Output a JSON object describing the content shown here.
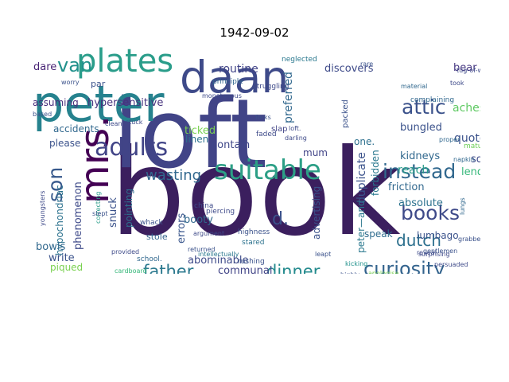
{
  "title": "1942-09-02",
  "chart_data": {
    "type": "wordcloud",
    "title": "1942-09-02",
    "words": [
      {
        "text": "book",
        "color": "#3b1f5e"
      },
      {
        "text": "loft",
        "color": "#414487"
      },
      {
        "text": "peter",
        "color": "#26828e"
      },
      {
        "text": "daan",
        "color": "#3e4a89"
      },
      {
        "text": "mrs.",
        "color": "#440154"
      },
      {
        "text": "plates",
        "color": "#2a9d8a"
      },
      {
        "text": "suitable",
        "color": "#2c9f86"
      },
      {
        "text": "adults",
        "color": "#414487"
      },
      {
        "text": "instead",
        "color": "#31688e"
      },
      {
        "text": "books",
        "color": "#3e4a89"
      },
      {
        "text": "son",
        "color": "#38598c"
      },
      {
        "text": "van",
        "color": "#21918c"
      },
      {
        "text": "attic",
        "color": "#3b528b"
      },
      {
        "text": "curiosity",
        "color": "#33638d"
      },
      {
        "text": "father",
        "color": "#2a788e"
      },
      {
        "text": "dinner",
        "color": "#238a8d"
      },
      {
        "text": "dutch",
        "color": "#2d708e"
      },
      {
        "text": "d.",
        "color": "#3b528b"
      },
      {
        "text": "wasting",
        "color": "#31688e"
      },
      {
        "text": "routine",
        "color": "#404387"
      },
      {
        "text": "discovers",
        "color": "#3e4a89"
      },
      {
        "text": "bear",
        "color": "#453781"
      },
      {
        "text": "dare",
        "color": "#482475"
      },
      {
        "text": "quote",
        "color": "#3b528b"
      },
      {
        "text": "aches",
        "color": "#5ec962"
      },
      {
        "text": "kidneys",
        "color": "#31688e"
      },
      {
        "text": "reach",
        "color": "#2a9d8a"
      },
      {
        "text": "soup",
        "color": "#3e4a89"
      },
      {
        "text": "lends",
        "color": "#35b779"
      },
      {
        "text": "bungled",
        "color": "#3b528b"
      },
      {
        "text": "one.",
        "color": "#2d708e"
      },
      {
        "text": "friction",
        "color": "#31688e"
      },
      {
        "text": "absolute",
        "color": "#2c728e"
      },
      {
        "text": "lumbago",
        "color": "#3b528b"
      },
      {
        "text": "speak",
        "color": "#2f6c8e"
      },
      {
        "text": "boxes",
        "color": "#3b528b"
      },
      {
        "text": "hypersensitive",
        "color": "#46327e"
      },
      {
        "text": "assuming",
        "color": "#472d7b"
      },
      {
        "text": "accidents",
        "color": "#31688e"
      },
      {
        "text": "please",
        "color": "#3b528b"
      },
      {
        "text": "ticked",
        "color": "#7ad151"
      },
      {
        "text": "linen",
        "color": "#2c728e"
      },
      {
        "text": "contain",
        "color": "#3f4788"
      },
      {
        "text": "preferred",
        "color": "#31688e"
      },
      {
        "text": "mum",
        "color": "#414487"
      },
      {
        "text": "duplicate",
        "color": "#3b528b"
      },
      {
        "text": "forbidden",
        "color": "#2a788e"
      },
      {
        "text": "peter—and",
        "color": "#2a788e"
      },
      {
        "text": "advertising",
        "color": "#3b528b"
      },
      {
        "text": "errors",
        "color": "#39568c"
      },
      {
        "text": "booty",
        "color": "#31688e"
      },
      {
        "text": "stole",
        "color": "#33638d"
      },
      {
        "text": "abominable",
        "color": "#3e4a89"
      },
      {
        "text": "communal",
        "color": "#414487"
      },
      {
        "text": "snuck",
        "color": "#3b528b"
      },
      {
        "text": "pointing",
        "color": "#2d708e"
      },
      {
        "text": "phenomenon",
        "color": "#3e4a89"
      },
      {
        "text": "hypochondriac",
        "color": "#2c728e"
      },
      {
        "text": "bowls",
        "color": "#31688e"
      },
      {
        "text": "write",
        "color": "#3b528b"
      },
      {
        "text": "piqued",
        "color": "#7ad151"
      },
      {
        "text": "school.",
        "color": "#31688e"
      },
      {
        "text": "par",
        "color": "#3b528b"
      },
      {
        "text": "slap",
        "color": "#414487"
      },
      {
        "text": "packed",
        "color": "#3b528b"
      },
      {
        "text": "struggling",
        "color": "#3e4a89"
      },
      {
        "text": "principle",
        "color": "#31688e"
      },
      {
        "text": "neglected",
        "color": "#2a788e"
      },
      {
        "text": "complaining",
        "color": "#31688e"
      },
      {
        "text": "china",
        "color": "#3e4a89"
      },
      {
        "text": "rushing",
        "color": "#3b528b"
      },
      {
        "text": "piercing",
        "color": "#3e4a89"
      },
      {
        "text": "highness",
        "color": "#3b528b"
      },
      {
        "text": "stared",
        "color": "#2c728e"
      },
      {
        "text": "whack",
        "color": "#3b528b"
      },
      {
        "text": "faded",
        "color": "#3e4a89"
      },
      {
        "text": "forks",
        "color": "#3b528b"
      },
      {
        "text": "loft.",
        "color": "#3e4a89"
      },
      {
        "text": "darling",
        "color": "#3e4a89"
      },
      {
        "text": "kicking",
        "color": "#21918c"
      },
      {
        "text": "leapt",
        "color": "#3b528b"
      },
      {
        "text": "cardboard",
        "color": "#35b779"
      },
      {
        "text": "provided",
        "color": "#3e4a89"
      },
      {
        "text": "worry",
        "color": "#3b528b"
      },
      {
        "text": "monotonous",
        "color": "#3e4a89"
      },
      {
        "text": "mature",
        "color": "#6ece58"
      },
      {
        "text": "napkin",
        "color": "#31688e"
      },
      {
        "text": "tug-of-war",
        "color": "#3e4a89"
      },
      {
        "text": "rare",
        "color": "#3b528b"
      },
      {
        "text": "took",
        "color": "#3e4a89"
      },
      {
        "text": "material",
        "color": "#31688e"
      },
      {
        "text": "based",
        "color": "#3b528b"
      },
      {
        "text": "clean",
        "color": "#3e4a89"
      },
      {
        "text": "correcting",
        "color": "#2a9d8a"
      },
      {
        "text": "slept",
        "color": "#3b528b"
      },
      {
        "text": "youngsters",
        "color": "#3e4a89"
      },
      {
        "text": "interruptions",
        "color": "#31688e"
      },
      {
        "text": "reveal",
        "color": "#3e4a89"
      },
      {
        "text": "apologise",
        "color": "#7ad151"
      },
      {
        "text": "gentlemen",
        "color": "#3b528b"
      },
      {
        "text": "persuaded",
        "color": "#3e4a89"
      },
      {
        "text": "grabbed",
        "color": "#3b528b"
      },
      {
        "text": "lungs",
        "color": "#31688e"
      },
      {
        "text": "intellectually",
        "color": "#2a788e"
      },
      {
        "text": "argument",
        "color": "#3e4a89"
      },
      {
        "text": "returned",
        "color": "#3b528b"
      },
      {
        "text": "surprising",
        "color": "#3e4a89"
      },
      {
        "text": "highly",
        "color": "#3b528b"
      },
      {
        "text": "proper",
        "color": "#31688e"
      },
      {
        "text": "stuck",
        "color": "#3e4a89"
      },
      {
        "text": "shock",
        "color": "#3b528b"
      },
      {
        "text": "swift",
        "color": "#3e4a89"
      }
    ]
  }
}
